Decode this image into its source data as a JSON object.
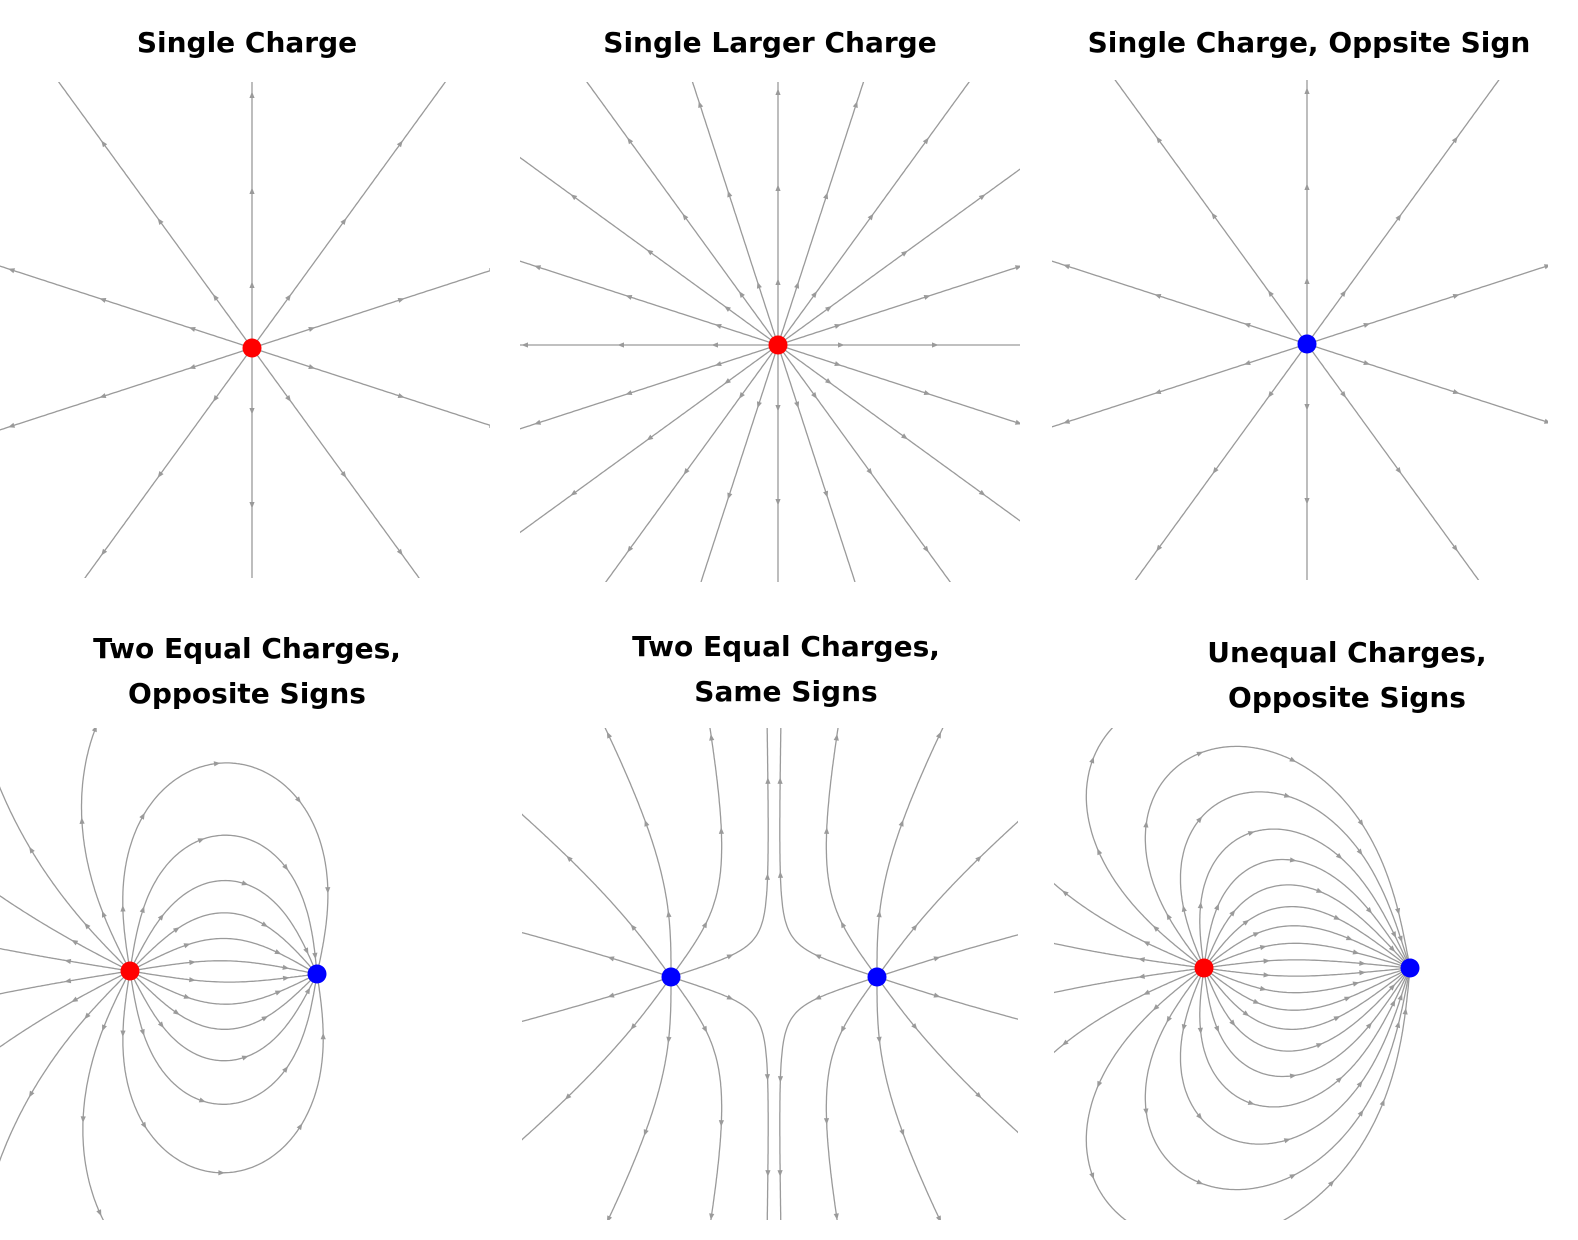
{
  "colors": {
    "line": "#9a9a9a",
    "positive": "#ff0000",
    "negative": "#0000ff",
    "title": "#000000"
  },
  "panels": [
    {
      "id": "single-charge",
      "title_lines": [
        "Single Charge"
      ],
      "charges": [
        {
          "sign": "+",
          "q": 1
        }
      ],
      "line_count": 10
    },
    {
      "id": "single-larger-charge",
      "title_lines": [
        "Single Larger Charge"
      ],
      "charges": [
        {
          "sign": "+",
          "q": 2
        }
      ],
      "line_count": 20
    },
    {
      "id": "single-charge-opposite-sign",
      "title_lines": [
        "Single Charge, Oppsite Sign"
      ],
      "charges": [
        {
          "sign": "-",
          "q": 1
        }
      ],
      "line_count": 10
    },
    {
      "id": "two-equal-charges-opposite-signs",
      "title_lines": [
        "Two Equal Charges,",
        "Opposite Signs"
      ],
      "charges": [
        {
          "sign": "+",
          "q": 1
        },
        {
          "sign": "-",
          "q": 1
        }
      ],
      "line_count": 20
    },
    {
      "id": "two-equal-charges-same-signs",
      "title_lines": [
        "Two Equal Charges,",
        "Same Signs"
      ],
      "charges": [
        {
          "sign": "-",
          "q": 1
        },
        {
          "sign": "-",
          "q": 1
        }
      ],
      "line_count": 20
    },
    {
      "id": "unequal-charges-opposite-signs",
      "title_lines": [
        "Unequal Charges,",
        "Opposite Signs"
      ],
      "charges": [
        {
          "sign": "+",
          "q": 1
        },
        {
          "sign": "-",
          "q": 2
        }
      ],
      "line_count": 24
    }
  ]
}
